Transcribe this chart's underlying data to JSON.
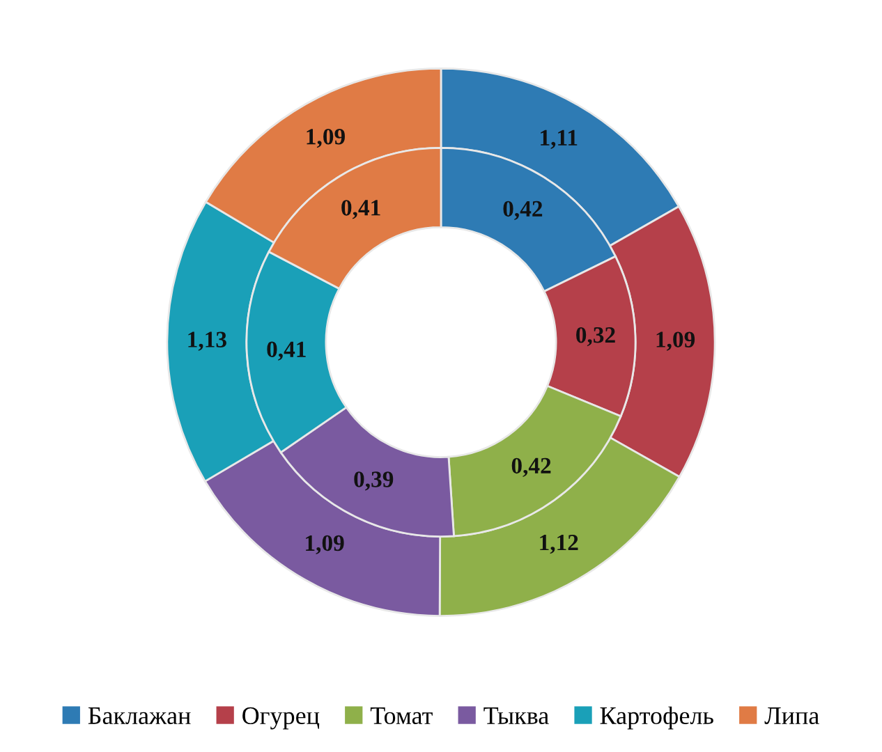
{
  "chart_data": {
    "type": "donut",
    "categories": [
      "Баклажан",
      "Огурец",
      "Томат",
      "Тыква",
      "Картофель",
      "Липа"
    ],
    "colors": [
      "#2e7bb4",
      "#b5404a",
      "#8fb04a",
      "#7a5aa0",
      "#1aa0b8",
      "#e07b45"
    ],
    "series": [
      {
        "values": [
          1.11,
          1.09,
          1.12,
          1.09,
          1.13,
          1.09
        ],
        "value_labels": [
          "1,11",
          "1,09",
          "1,12",
          "1,09",
          "1,13",
          "1,09"
        ]
      },
      {
        "values": [
          0.42,
          0.32,
          0.42,
          0.39,
          0.41,
          0.41
        ],
        "value_labels": [
          "0,42",
          "0,32",
          "0,42",
          "0,39",
          "0,41",
          "0,41"
        ]
      }
    ],
    "legend": "bottom"
  }
}
